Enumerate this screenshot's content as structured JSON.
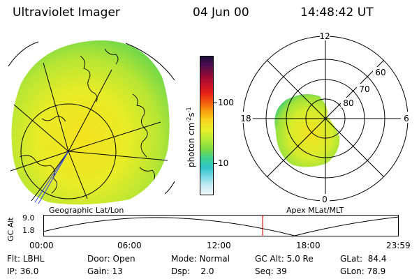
{
  "header": {
    "title": "Ultraviolet Imager",
    "date": "04 Jun 00",
    "time": "14:48:42 UT"
  },
  "colorbar": {
    "label": "photon cm",
    "label_sup1": "-2",
    "label_mid": "s",
    "label_sup2": "-1",
    "ticks": [
      "100",
      "10"
    ],
    "colors": [
      "#1a0f3d",
      "#4b0b4e",
      "#8a0a3a",
      "#c0102a",
      "#e82018",
      "#f2580e",
      "#f7a20d",
      "#f8d620",
      "#e6f02a",
      "#b5ea35",
      "#7edc3f",
      "#3fd08f",
      "#2ec4c8",
      "#7ad8e6",
      "#c8ecf2",
      "#f2f8fa"
    ]
  },
  "panels": {
    "left_label": "Geographic Lat/Lon",
    "right_label": "Apex MLat/MLT"
  },
  "polar": {
    "mlt": {
      "top": "12",
      "bottom": "0",
      "left": "18",
      "right": "6"
    },
    "lat": [
      "60",
      "70",
      "80"
    ]
  },
  "altplot": {
    "ylabel": "GC Alt",
    "yticks": [
      "9.0",
      "1.8"
    ],
    "xticks": [
      "00:00",
      "06:00",
      "12:00",
      "18:00",
      "23:59"
    ],
    "current_time_hours": 14.81
  },
  "info": {
    "row1": [
      {
        "key": "Flt:",
        "val": "LBHL"
      },
      {
        "key": "Door:",
        "val": "Open"
      },
      {
        "key": "Mode:",
        "val": "Normal"
      },
      {
        "key": "GC Alt:",
        "val": "5.0 Re"
      },
      {
        "key": "GLat:",
        "val": "84.4"
      }
    ],
    "row2": [
      {
        "key": "IP:",
        "val": "36.0"
      },
      {
        "key": "Gain:",
        "val": "13"
      },
      {
        "key": "Dsp:",
        "val": "2.0"
      },
      {
        "key": "Seq:",
        "val": "39"
      },
      {
        "key": "GLon:",
        "val": "78.9"
      }
    ]
  }
}
